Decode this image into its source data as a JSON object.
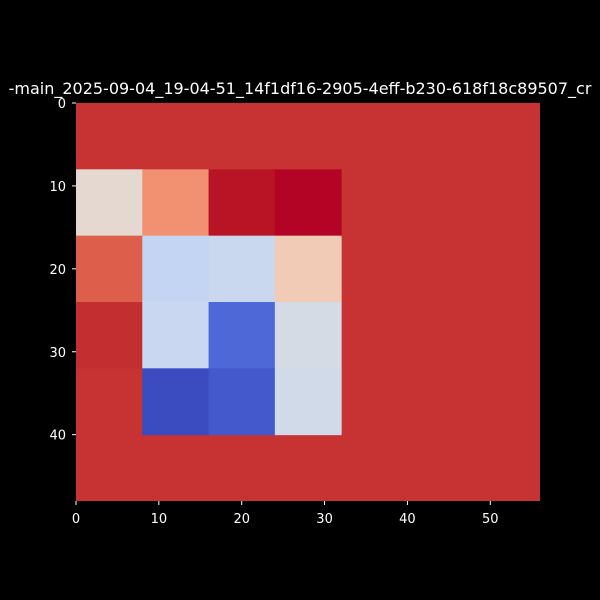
{
  "chart_data": {
    "type": "heatmap",
    "title": "-main_2025-09-04_19-04-51_14f1df16-2905-4eff-b230-618f18c89507_cr",
    "xlabel": "",
    "ylabel": "",
    "xlim": [
      0,
      56
    ],
    "ylim": [
      48,
      0
    ],
    "xticks": [
      0,
      10,
      20,
      30,
      40,
      50
    ],
    "yticks": [
      0,
      10,
      20,
      30,
      40
    ],
    "grid": false,
    "legend": "none",
    "colormap": "coolwarm",
    "background_color": "#c73232",
    "cells": [
      {
        "x0": 0,
        "x1": 8,
        "y0": 8,
        "y1": 16,
        "color": "#e5d8d1"
      },
      {
        "x0": 8,
        "x1": 16,
        "y0": 8,
        "y1": 16,
        "color": "#f29072"
      },
      {
        "x0": 16,
        "x1": 24,
        "y0": 8,
        "y1": 16,
        "color": "#b91326"
      },
      {
        "x0": 24,
        "x1": 32,
        "y0": 8,
        "y1": 16,
        "color": "#b40426"
      },
      {
        "x0": 0,
        "x1": 8,
        "y0": 16,
        "y1": 24,
        "color": "#dd5f4b"
      },
      {
        "x0": 8,
        "x1": 16,
        "y0": 16,
        "y1": 24,
        "color": "#c4d5f3"
      },
      {
        "x0": 16,
        "x1": 24,
        "y0": 16,
        "y1": 24,
        "color": "#cad8ef"
      },
      {
        "x0": 24,
        "x1": 32,
        "y0": 16,
        "y1": 24,
        "color": "#f2cbb7"
      },
      {
        "x0": 0,
        "x1": 8,
        "y0": 24,
        "y1": 32,
        "color": "#c32e31"
      },
      {
        "x0": 8,
        "x1": 16,
        "y0": 24,
        "y1": 32,
        "color": "#c9d7f0"
      },
      {
        "x0": 16,
        "x1": 24,
        "y0": 24,
        "y1": 32,
        "color": "#4e68d8"
      },
      {
        "x0": 24,
        "x1": 32,
        "y0": 24,
        "y1": 32,
        "color": "#d5dbe5"
      },
      {
        "x0": 0,
        "x1": 8,
        "y0": 32,
        "y1": 40,
        "color": "#c73232"
      },
      {
        "x0": 8,
        "x1": 16,
        "y0": 32,
        "y1": 40,
        "color": "#3b4cc0"
      },
      {
        "x0": 16,
        "x1": 24,
        "y0": 32,
        "y1": 40,
        "color": "#445acc"
      },
      {
        "x0": 24,
        "x1": 32,
        "y0": 32,
        "y1": 40,
        "color": "#d1dae9"
      }
    ]
  }
}
